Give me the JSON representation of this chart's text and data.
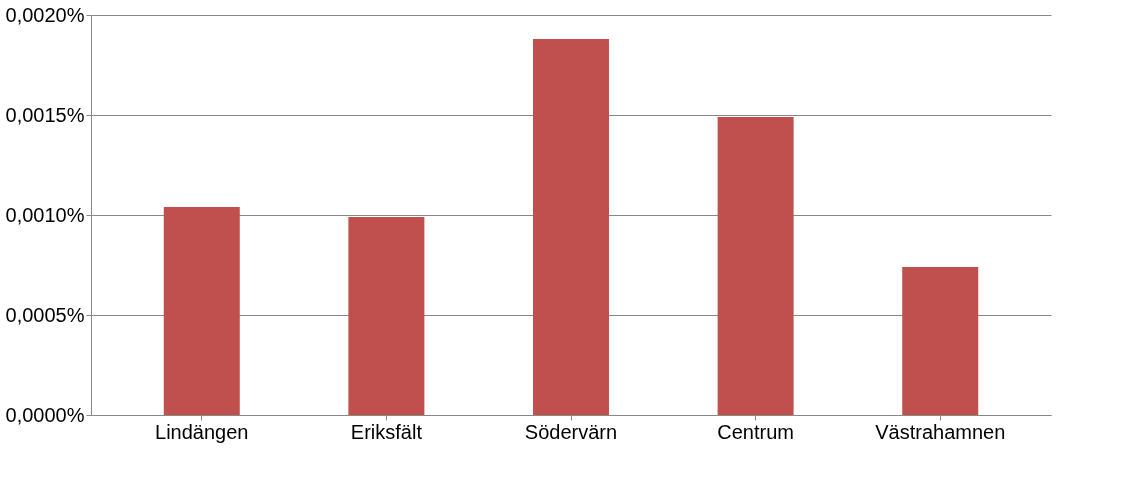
{
  "chart_data": {
    "type": "bar",
    "categories": [
      "Lindängen",
      "Eriksfält",
      "Södervärn",
      "Centrum",
      "Västrahamnen"
    ],
    "values": [
      0.00104,
      0.00099,
      0.00188,
      0.00149,
      0.00074
    ],
    "color": "#c0504d",
    "ylim": [
      0,
      0.002
    ],
    "yticks": [
      {
        "value": 0,
        "label": "0,0000%"
      },
      {
        "value": 0.0005,
        "label": "0,0005%"
      },
      {
        "value": 0.001,
        "label": "0,0010%"
      },
      {
        "value": 0.0015,
        "label": "0,0015%"
      },
      {
        "value": 0.002,
        "label": "0,0020%"
      }
    ],
    "grid": true
  }
}
